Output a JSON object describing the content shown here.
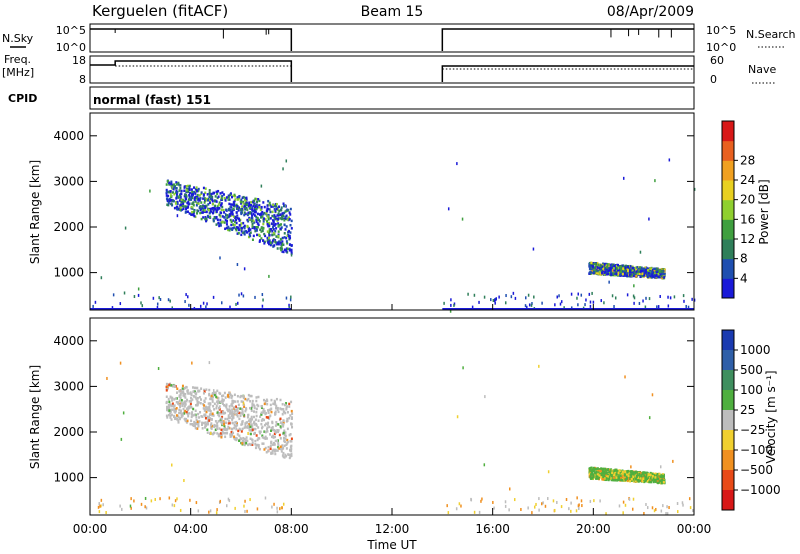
{
  "header": {
    "station": "Kerguelen (fitACF)",
    "beam": "Beam 15",
    "date": "08/Apr/2009"
  },
  "panels": {
    "nsky_label": "N.Sky",
    "nsky_ticks": [
      "10^5",
      "10^0"
    ],
    "nsearch_label": "N.Search",
    "nsearch_ticks": [
      "10^5",
      "10^0"
    ],
    "freq_label_line1": "Freq.",
    "freq_label_line2": "[MHz]",
    "freq_ticks": [
      "18",
      "8"
    ],
    "nave_label": "Nave",
    "nave_ticks": [
      "60",
      "0"
    ],
    "cpid_label": "CPID",
    "cpid_value": "normal (fast) 151"
  },
  "colors": {
    "power": [
      "#1a1ad8",
      "#1f4fb0",
      "#2f7f5a",
      "#3f9f3f",
      "#8fcf2f",
      "#e8d020",
      "#f0a020",
      "#e86020",
      "#d81818"
    ],
    "velocity": [
      "#1a3ab0",
      "#2f5fa8",
      "#3f8f5f",
      "#4faf3f",
      "#bdbdbd",
      "#f0d030",
      "#f09020",
      "#e84a18",
      "#d81818"
    ],
    "ground_scatter": "#bdbdbd"
  },
  "chart_data": [
    {
      "type": "heatmap",
      "name": "power",
      "x_ticks": [
        "00:00",
        "04:00",
        "08:00",
        "12:00",
        "16:00",
        "20:00",
        "00:00"
      ],
      "xlim_hours": [
        0,
        24
      ],
      "ylabel": "Slant Range [km]",
      "ylim_km": [
        180,
        4500
      ],
      "y_ticks": [
        "1000",
        "2000",
        "3000",
        "4000"
      ],
      "colorbar_label": "Power [dB]",
      "colorbar_ticks": [
        "4",
        "8",
        "12",
        "16",
        "20",
        "24",
        "28"
      ],
      "data_gap_hours": [
        8.0,
        14.0
      ],
      "echo_regions": [
        {
          "hour_start": 3.0,
          "hour_end": 8.0,
          "range_top_start": 3050,
          "range_top_end": 2500,
          "range_bottom_start": 2500,
          "range_bottom_end": 1400,
          "peak_power_db": 16
        },
        {
          "hour_start": 19.8,
          "hour_end": 22.8,
          "range_top_start": 1250,
          "range_top_end": 1100,
          "range_bottom_start": 1000,
          "range_bottom_end": 900,
          "peak_power_db": 22
        }
      ]
    },
    {
      "type": "heatmap",
      "name": "velocity",
      "x_ticks": [
        "00:00",
        "04:00",
        "08:00",
        "12:00",
        "16:00",
        "20:00",
        "00:00"
      ],
      "xlabel": "Time UT",
      "xlim_hours": [
        0,
        24
      ],
      "ylabel": "Slant Range [km]",
      "ylim_km": [
        180,
        4500
      ],
      "y_ticks": [
        "1000",
        "2000",
        "3000",
        "4000"
      ],
      "colorbar_label": "Velocity [m s⁻¹]",
      "colorbar_ticks": [
        "1000",
        "500",
        "100",
        "25",
        "−25",
        "−100",
        "−500",
        "−1000"
      ],
      "data_gap_hours": [
        8.0,
        14.0
      ],
      "echo_regions": [
        {
          "hour_start": 3.0,
          "hour_end": 8.0,
          "range_top_start": 3100,
          "range_top_end": 2700,
          "range_bottom_start": 2300,
          "range_bottom_end": 1400,
          "velocity_ms": 0
        },
        {
          "hour_start": 19.8,
          "hour_end": 22.8,
          "range_top_start": 1250,
          "range_top_end": 1100,
          "range_bottom_start": 1000,
          "range_bottom_end": 900,
          "velocity_ms": 80
        }
      ]
    }
  ]
}
